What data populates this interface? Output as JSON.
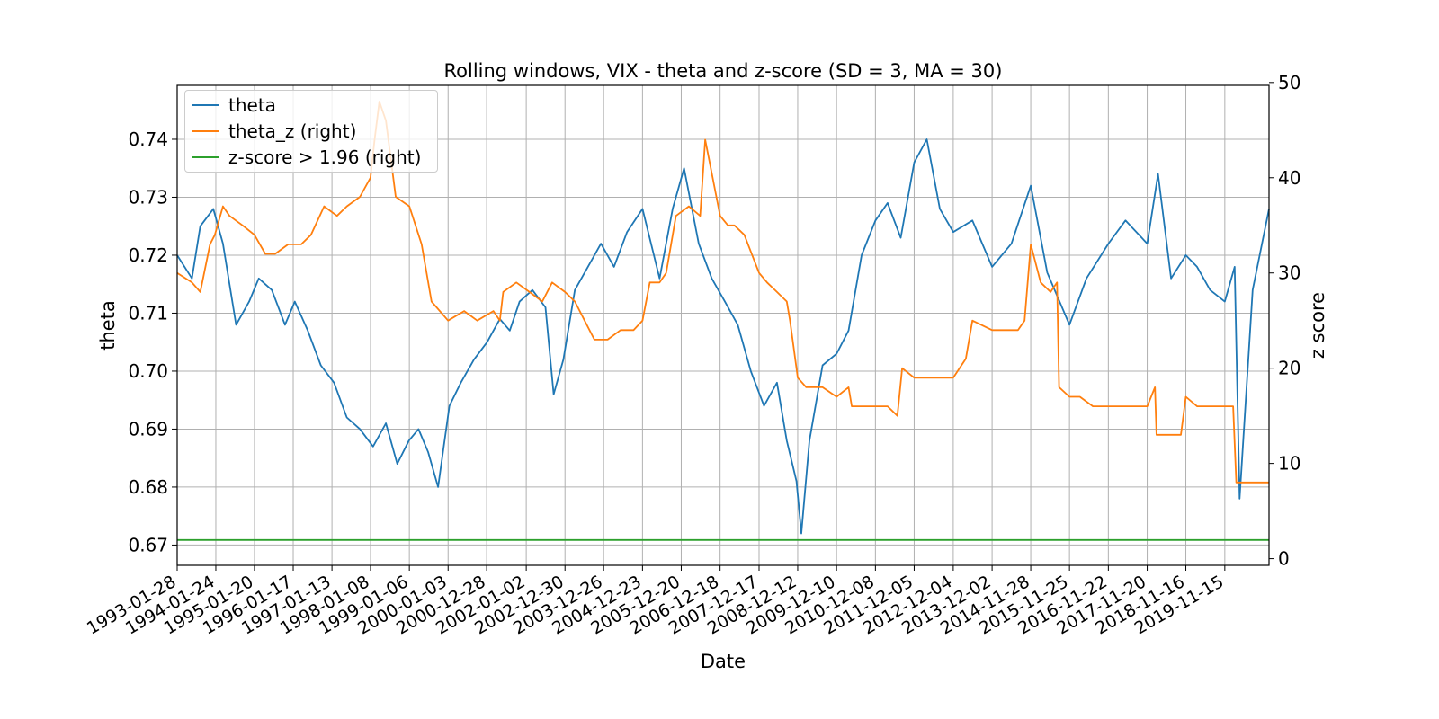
{
  "chart_data": {
    "type": "line",
    "title": "Rolling windows, VIX - theta and z-score (SD = 3, MA = 30)",
    "xlabel": "Date",
    "ylabel": "theta",
    "ylabel_right": "z score",
    "x_range": [
      "1993-01-28",
      "2021-01-01"
    ],
    "ylim": [
      0.6665,
      0.7493
    ],
    "ylim_right": [
      -0.7,
      49.7
    ],
    "grid": true,
    "legend_position": "upper left",
    "x_ticks": [
      "1993-01-28",
      "1994-01-24",
      "1995-01-20",
      "1996-01-17",
      "1997-01-13",
      "1998-01-08",
      "1999-01-06",
      "2000-01-03",
      "2000-12-28",
      "2002-01-02",
      "2002-12-30",
      "2003-12-26",
      "2004-12-23",
      "2005-12-20",
      "2006-12-18",
      "2007-12-17",
      "2008-12-12",
      "2009-12-10",
      "2010-12-08",
      "2011-12-05",
      "2012-12-04",
      "2013-12-02",
      "2014-11-28",
      "2015-11-25",
      "2016-11-22",
      "2017-11-20",
      "2018-11-16",
      "2019-11-15"
    ],
    "y_ticks_left": [
      "0.67",
      "0.68",
      "0.69",
      "0.70",
      "0.71",
      "0.72",
      "0.73",
      "0.74"
    ],
    "y_ticks_right": [
      "0",
      "10",
      "20",
      "30",
      "40",
      "50"
    ],
    "series": [
      {
        "name": "theta",
        "axis": "left",
        "color": "#1f77b4",
        "x": [
          "1993-01-28",
          "1993-06-15",
          "1993-09-01",
          "1994-01-01",
          "1994-04-01",
          "1994-08-01",
          "1994-12-01",
          "1995-03-01",
          "1995-07-01",
          "1995-11-01",
          "1996-02-01",
          "1996-06-01",
          "1996-10-01",
          "1997-02-01",
          "1997-06-01",
          "1997-10-01",
          "1998-02-01",
          "1998-06-01",
          "1998-09-15",
          "1999-01-01",
          "1999-04-01",
          "1999-07-01",
          "1999-10-01",
          "2000-01-15",
          "2000-05-01",
          "2000-09-01",
          "2001-01-01",
          "2001-05-01",
          "2001-08-01",
          "2001-11-01",
          "2002-03-01",
          "2002-07-01",
          "2002-09-15",
          "2002-12-15",
          "2003-04-01",
          "2003-08-01",
          "2003-12-01",
          "2004-04-01",
          "2004-08-01",
          "2004-12-23",
          "2005-06-01",
          "2005-10-01",
          "2006-01-15",
          "2006-06-01",
          "2006-10-01",
          "2007-02-01",
          "2007-06-01",
          "2007-10-01",
          "2008-02-01",
          "2008-06-01",
          "2008-09-01",
          "2008-12-01",
          "2009-01-15",
          "2009-04-01",
          "2009-08-01",
          "2009-12-10",
          "2010-04-01",
          "2010-08-01",
          "2010-12-08",
          "2011-04-01",
          "2011-08-01",
          "2011-12-05",
          "2012-04-01",
          "2012-08-01",
          "2012-12-04",
          "2013-06-01",
          "2013-12-02",
          "2014-06-01",
          "2014-11-28",
          "2015-05-01",
          "2015-11-25",
          "2016-05-01",
          "2016-11-22",
          "2017-05-01",
          "2017-11-20",
          "2018-03-01",
          "2018-07-01",
          "2018-11-16",
          "2019-03-01",
          "2019-07-01",
          "2019-11-15",
          "2020-02-15",
          "2020-04-01",
          "2020-08-01",
          "2021-01-01"
        ],
        "values": [
          0.72,
          0.716,
          0.725,
          0.728,
          0.722,
          0.708,
          0.712,
          0.716,
          0.714,
          0.708,
          0.712,
          0.707,
          0.701,
          0.698,
          0.692,
          0.69,
          0.687,
          0.691,
          0.684,
          0.688,
          0.69,
          0.686,
          0.68,
          0.694,
          0.698,
          0.702,
          0.705,
          0.709,
          0.707,
          0.712,
          0.714,
          0.711,
          0.696,
          0.702,
          0.714,
          0.718,
          0.722,
          0.718,
          0.724,
          0.728,
          0.716,
          0.728,
          0.735,
          0.722,
          0.716,
          0.712,
          0.708,
          0.7,
          0.694,
          0.698,
          0.688,
          0.681,
          0.672,
          0.688,
          0.701,
          0.703,
          0.707,
          0.72,
          0.726,
          0.729,
          0.723,
          0.736,
          0.74,
          0.728,
          0.724,
          0.726,
          0.718,
          0.722,
          0.732,
          0.717,
          0.708,
          0.716,
          0.722,
          0.726,
          0.722,
          0.734,
          0.716,
          0.72,
          0.718,
          0.714,
          0.712,
          0.718,
          0.678,
          0.714,
          0.728
        ]
      },
      {
        "name": "theta_z (right)",
        "axis": "right",
        "color": "#ff7f0e",
        "x": [
          "1993-01-28",
          "1993-06-15",
          "1993-09-01",
          "1993-12-01",
          "1994-01-15",
          "1994-04-01",
          "1994-06-01",
          "1994-10-01",
          "1995-01-20",
          "1995-05-01",
          "1995-08-01",
          "1995-12-01",
          "1996-04-01",
          "1996-07-01",
          "1996-11-01",
          "1997-03-01",
          "1997-06-01",
          "1997-10-01",
          "1998-01-08",
          "1998-02-15",
          "1998-04-01",
          "1998-06-01",
          "1998-09-01",
          "1999-01-06",
          "1999-05-01",
          "1999-08-01",
          "2000-01-03",
          "2000-06-01",
          "2000-10-01",
          "2001-03-01",
          "2001-05-01",
          "2001-06-01",
          "2001-10-01",
          "2002-02-01",
          "2002-06-01",
          "2002-09-01",
          "2002-12-30",
          "2003-04-01",
          "2003-07-01",
          "2003-10-01",
          "2004-02-01",
          "2004-06-01",
          "2004-10-01",
          "2004-12-23",
          "2005-03-01",
          "2005-06-01",
          "2005-08-01",
          "2005-11-01",
          "2006-03-01",
          "2006-06-15",
          "2006-08-01",
          "2006-12-18",
          "2007-03-01",
          "2007-05-01",
          "2007-08-01",
          "2007-12-17",
          "2008-03-01",
          "2008-06-01",
          "2008-09-01",
          "2008-10-01",
          "2008-12-12",
          "2009-03-01",
          "2009-08-01",
          "2009-12-10",
          "2010-04-01",
          "2010-05-01",
          "2010-09-01",
          "2010-12-08",
          "2011-04-01",
          "2011-07-01",
          "2011-08-15",
          "2011-12-05",
          "2012-04-01",
          "2012-08-01",
          "2012-12-04",
          "2013-04-01",
          "2013-06-01",
          "2013-12-02",
          "2014-04-01",
          "2014-08-01",
          "2014-10-01",
          "2014-11-28",
          "2015-03-01",
          "2015-06-01",
          "2015-08-01",
          "2015-08-20",
          "2015-11-25",
          "2016-03-01",
          "2016-07-01",
          "2016-11-22",
          "2017-03-01",
          "2017-07-01",
          "2017-11-20",
          "2018-02-01",
          "2018-02-15",
          "2018-06-01",
          "2018-10-01",
          "2018-11-16",
          "2019-03-01",
          "2019-07-01",
          "2019-11-15",
          "2020-02-01",
          "2020-03-01",
          "2020-05-01",
          "2021-01-01"
        ],
        "values": [
          30,
          29,
          28,
          33,
          34,
          37,
          36,
          35,
          34,
          32,
          32,
          33,
          33,
          34,
          37,
          36,
          37,
          38,
          40,
          44,
          48,
          46,
          38,
          37,
          33,
          27,
          25,
          26,
          25,
          26,
          25,
          28,
          29,
          28,
          27,
          29,
          28,
          27,
          25,
          23,
          23,
          24,
          24,
          25,
          29,
          29,
          30,
          36,
          37,
          36,
          44,
          36,
          35,
          35,
          34,
          30,
          29,
          28,
          27,
          25,
          19,
          18,
          18,
          17,
          18,
          16,
          16,
          16,
          16,
          15,
          20,
          19,
          19,
          19,
          19,
          21,
          25,
          24,
          24,
          24,
          25,
          33,
          29,
          28,
          29,
          18,
          17,
          17,
          16,
          16,
          16,
          16,
          16,
          18,
          13,
          13,
          13,
          17,
          16,
          16,
          16,
          16,
          8,
          8,
          8
        ]
      },
      {
        "name": "z-score > 1.96 (right)",
        "axis": "right",
        "color": "#2ca02c",
        "x": [
          "1993-01-28",
          "2021-01-01"
        ],
        "values": [
          1.96,
          1.96
        ]
      }
    ]
  }
}
